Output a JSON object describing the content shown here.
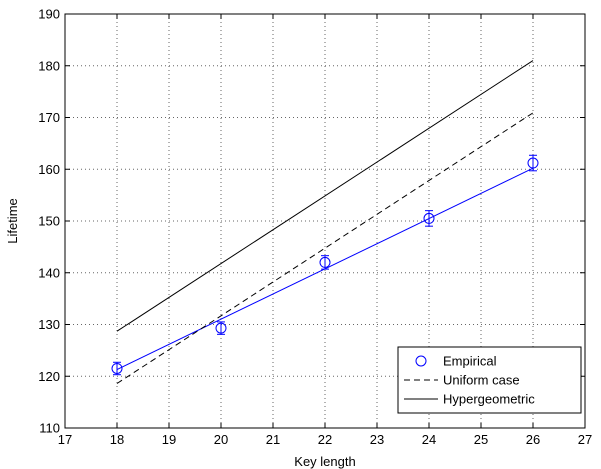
{
  "chart_data": {
    "type": "line",
    "xlabel": "Key length",
    "ylabel": "Lifetime",
    "xlim": [
      17,
      27
    ],
    "ylim": [
      110,
      190
    ],
    "x_ticks": [
      "17",
      "18",
      "19",
      "20",
      "21",
      "22",
      "23",
      "24",
      "25",
      "26",
      "27"
    ],
    "y_ticks": [
      "110",
      "120",
      "130",
      "140",
      "150",
      "160",
      "170",
      "180",
      "190"
    ],
    "grid": true,
    "legend_position": "bottom-right",
    "series": [
      {
        "name": "Empirical",
        "style": "circle-markers-with-errorbars",
        "color": "#0000ff",
        "x": [
          18,
          20,
          22,
          24,
          26
        ],
        "y": [
          121.5,
          129.3,
          142,
          150.5,
          161.2
        ],
        "err": [
          1.2,
          1.2,
          1.3,
          1.5,
          1.5
        ]
      },
      {
        "name": "Empirical fit",
        "style": "solid",
        "color": "#0000ff",
        "in_legend": false,
        "x": [
          18,
          26
        ],
        "y": [
          121.3,
          160.2
        ]
      },
      {
        "name": "Uniform case",
        "style": "dashed",
        "color": "#000000",
        "x": [
          18,
          26
        ],
        "y": [
          118.6,
          170.9
        ]
      },
      {
        "name": "Hypergeometric",
        "style": "solid",
        "color": "#000000",
        "x": [
          18,
          26
        ],
        "y": [
          128.7,
          181
        ]
      }
    ]
  }
}
